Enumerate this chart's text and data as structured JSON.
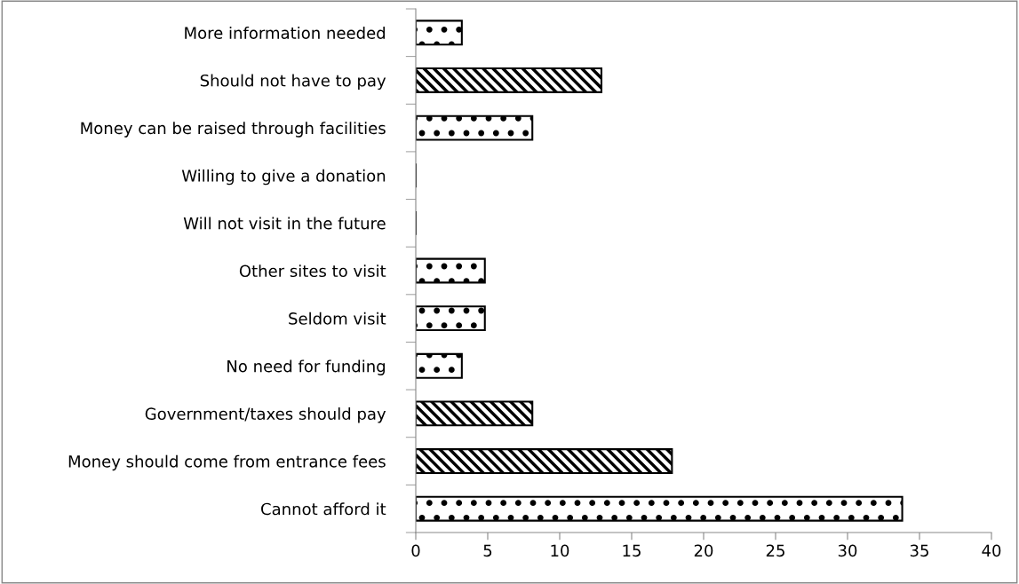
{
  "chart_data": {
    "type": "bar",
    "orientation": "horizontal",
    "categories": [
      "More information needed",
      "Should not have to pay",
      "Money can be raised through facilities",
      "Willing to give a donation",
      "Will not visit in the future",
      "Other sites to visit",
      "Seldom visit",
      "No need for funding",
      "Government/taxes should pay",
      "Money should come from entrance fees",
      "Cannot afford it"
    ],
    "series": [
      {
        "color": "#000000",
        "values": [
          3.2,
          null,
          8.1,
          0,
          0,
          4.8,
          4.8,
          3.2,
          null,
          null,
          33.8
        ]
      },
      {
        "color": "#000000",
        "values": [
          null,
          12.9,
          null,
          null,
          null,
          null,
          null,
          null,
          8.1,
          17.8,
          null
        ]
      }
    ],
    "xlim": [
      0,
      40
    ],
    "xticks": [
      0,
      5,
      10,
      15,
      20,
      25,
      30,
      35,
      40
    ],
    "grid": false
  }
}
